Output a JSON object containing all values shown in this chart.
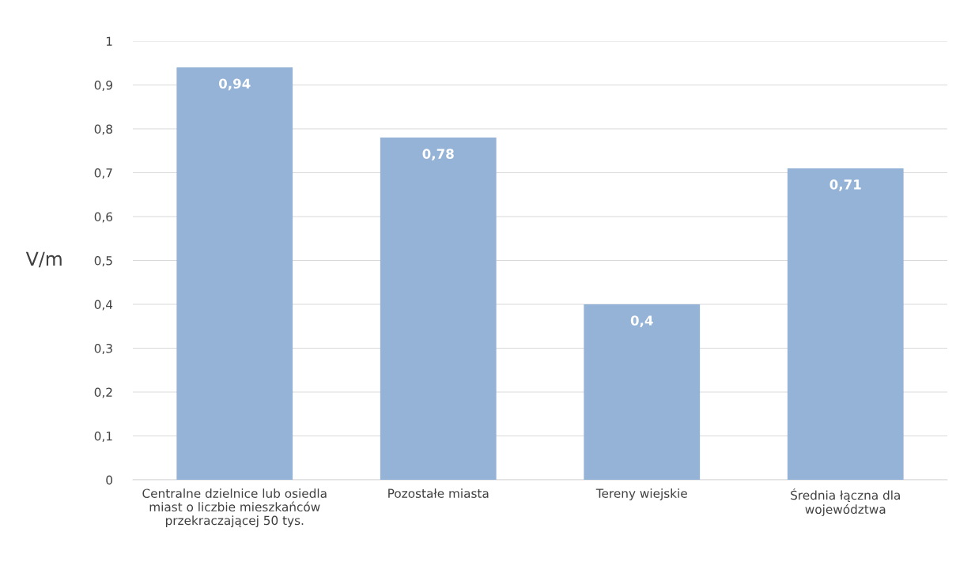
{
  "chart_data": {
    "type": "bar",
    "categories": [
      "Centralne dzielnice lub osiedla\nmiast o liczbie mieszkańców\nprzekraczającej 50 tys.",
      "Pozostałe miasta",
      "Tereny wiejskie",
      "Średnia łączna dla\nwojewództwa"
    ],
    "values": [
      0.94,
      0.78,
      0.4,
      0.71
    ],
    "value_labels": [
      "0,94",
      "0,78",
      "0,4",
      "0,71"
    ],
    "color": "#95b3d7",
    "ylabel": "V/m",
    "ylim": [
      0,
      1
    ],
    "yticks": [
      0,
      {
        "value": 0.1,
        "label": "0,1"
      },
      {
        "value": 0.2,
        "label": "0,2"
      },
      {
        "value": 0.3,
        "label": "0,3"
      },
      {
        "value": 0.4,
        "label": "0,4"
      },
      {
        "value": 0.5,
        "label": "0,5"
      },
      {
        "value": 0.6,
        "label": "0,6"
      },
      {
        "value": 0.7,
        "label": "0,7"
      },
      {
        "value": 0.8,
        "label": "0,8"
      },
      {
        "value": 0.9,
        "label": "0,9"
      },
      1
    ],
    "grid": "y"
  }
}
